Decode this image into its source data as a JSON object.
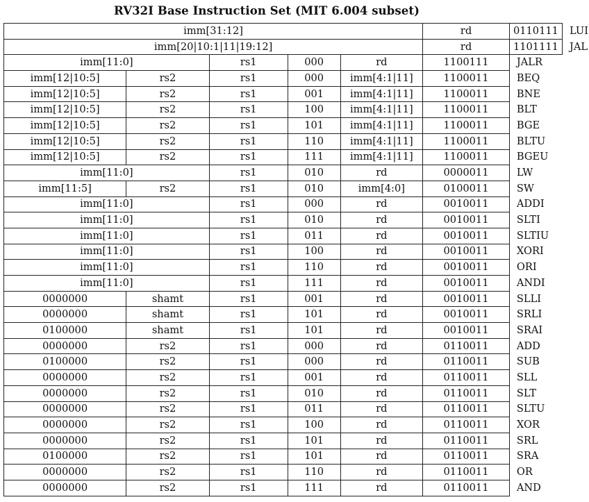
{
  "title": "RV32I Base Instruction Set (MIT 6.004 subset)",
  "instructions": [
    {
      "cells": [
        "imm[31:12]",
        "rd",
        "0110111"
      ],
      "spans": [
        5,
        1,
        1
      ],
      "name": "LUI"
    },
    {
      "cells": [
        "imm[20|10:1|11|19:12]",
        "rd",
        "1101111"
      ],
      "spans": [
        5,
        1,
        1
      ],
      "name": "JAL"
    },
    {
      "cells": [
        "imm[11:0]",
        "rs1",
        "000",
        "rd",
        "1100111"
      ],
      "spans": [
        2,
        1,
        1,
        1,
        1
      ],
      "name": "JALR"
    },
    {
      "cells": [
        "imm[12|10:5]",
        "rs2",
        "rs1",
        "000",
        "imm[4:1|11]",
        "1100011"
      ],
      "spans": [
        1,
        1,
        1,
        1,
        1,
        1
      ],
      "name": "BEQ"
    },
    {
      "cells": [
        "imm[12|10:5]",
        "rs2",
        "rs1",
        "001",
        "imm[4:1|11]",
        "1100011"
      ],
      "spans": [
        1,
        1,
        1,
        1,
        1,
        1
      ],
      "name": "BNE"
    },
    {
      "cells": [
        "imm[12|10:5]",
        "rs2",
        "rs1",
        "100",
        "imm[4:1|11]",
        "1100011"
      ],
      "spans": [
        1,
        1,
        1,
        1,
        1,
        1
      ],
      "name": "BLT"
    },
    {
      "cells": [
        "imm[12|10:5]",
        "rs2",
        "rs1",
        "101",
        "imm[4:1|11]",
        "1100011"
      ],
      "spans": [
        1,
        1,
        1,
        1,
        1,
        1
      ],
      "name": "BGE"
    },
    {
      "cells": [
        "imm[12|10:5]",
        "rs2",
        "rs1",
        "110",
        "imm[4:1|11]",
        "1100011"
      ],
      "spans": [
        1,
        1,
        1,
        1,
        1,
        1
      ],
      "name": "BLTU"
    },
    {
      "cells": [
        "imm[12|10:5]",
        "rs2",
        "rs1",
        "111",
        "imm[4:1|11]",
        "1100011"
      ],
      "spans": [
        1,
        1,
        1,
        1,
        1,
        1
      ],
      "name": "BGEU"
    },
    {
      "cells": [
        "imm[11:0]",
        "rs1",
        "010",
        "rd",
        "0000011"
      ],
      "spans": [
        2,
        1,
        1,
        1,
        1
      ],
      "name": "LW"
    },
    {
      "cells": [
        "imm[11:5]",
        "rs2",
        "rs1",
        "010",
        "imm[4:0]",
        "0100011"
      ],
      "spans": [
        1,
        1,
        1,
        1,
        1,
        1
      ],
      "name": "SW"
    },
    {
      "cells": [
        "imm[11:0]",
        "rs1",
        "000",
        "rd",
        "0010011"
      ],
      "spans": [
        2,
        1,
        1,
        1,
        1
      ],
      "name": "ADDI"
    },
    {
      "cells": [
        "imm[11:0]",
        "rs1",
        "010",
        "rd",
        "0010011"
      ],
      "spans": [
        2,
        1,
        1,
        1,
        1
      ],
      "name": "SLTI"
    },
    {
      "cells": [
        "imm[11:0]",
        "rs1",
        "011",
        "rd",
        "0010011"
      ],
      "spans": [
        2,
        1,
        1,
        1,
        1
      ],
      "name": "SLTIU"
    },
    {
      "cells": [
        "imm[11:0]",
        "rs1",
        "100",
        "rd",
        "0010011"
      ],
      "spans": [
        2,
        1,
        1,
        1,
        1
      ],
      "name": "XORI"
    },
    {
      "cells": [
        "imm[11:0]",
        "rs1",
        "110",
        "rd",
        "0010011"
      ],
      "spans": [
        2,
        1,
        1,
        1,
        1
      ],
      "name": "ORI"
    },
    {
      "cells": [
        "imm[11:0]",
        "rs1",
        "111",
        "rd",
        "0010011"
      ],
      "spans": [
        2,
        1,
        1,
        1,
        1
      ],
      "name": "ANDI"
    },
    {
      "cells": [
        "0000000",
        "shamt",
        "rs1",
        "001",
        "rd",
        "0010011"
      ],
      "spans": [
        1,
        1,
        1,
        1,
        1,
        1
      ],
      "name": "SLLI"
    },
    {
      "cells": [
        "0000000",
        "shamt",
        "rs1",
        "101",
        "rd",
        "0010011"
      ],
      "spans": [
        1,
        1,
        1,
        1,
        1,
        1
      ],
      "name": "SRLI"
    },
    {
      "cells": [
        "0100000",
        "shamt",
        "rs1",
        "101",
        "rd",
        "0010011"
      ],
      "spans": [
        1,
        1,
        1,
        1,
        1,
        1
      ],
      "name": "SRAI"
    },
    {
      "cells": [
        "0000000",
        "rs2",
        "rs1",
        "000",
        "rd",
        "0110011"
      ],
      "spans": [
        1,
        1,
        1,
        1,
        1,
        1
      ],
      "name": "ADD"
    },
    {
      "cells": [
        "0100000",
        "rs2",
        "rs1",
        "000",
        "rd",
        "0110011"
      ],
      "spans": [
        1,
        1,
        1,
        1,
        1,
        1
      ],
      "name": "SUB"
    },
    {
      "cells": [
        "0000000",
        "rs2",
        "rs1",
        "001",
        "rd",
        "0110011"
      ],
      "spans": [
        1,
        1,
        1,
        1,
        1,
        1
      ],
      "name": "SLL"
    },
    {
      "cells": [
        "0000000",
        "rs2",
        "rs1",
        "010",
        "rd",
        "0110011"
      ],
      "spans": [
        1,
        1,
        1,
        1,
        1,
        1
      ],
      "name": "SLT"
    },
    {
      "cells": [
        "0000000",
        "rs2",
        "rs1",
        "011",
        "rd",
        "0110011"
      ],
      "spans": [
        1,
        1,
        1,
        1,
        1,
        1
      ],
      "name": "SLTU"
    },
    {
      "cells": [
        "0000000",
        "rs2",
        "rs1",
        "100",
        "rd",
        "0110011"
      ],
      "spans": [
        1,
        1,
        1,
        1,
        1,
        1
      ],
      "name": "XOR"
    },
    {
      "cells": [
        "0000000",
        "rs2",
        "rs1",
        "101",
        "rd",
        "0110011"
      ],
      "spans": [
        1,
        1,
        1,
        1,
        1,
        1
      ],
      "name": "SRL"
    },
    {
      "cells": [
        "0100000",
        "rs2",
        "rs1",
        "101",
        "rd",
        "0110011"
      ],
      "spans": [
        1,
        1,
        1,
        1,
        1,
        1
      ],
      "name": "SRA"
    },
    {
      "cells": [
        "0000000",
        "rs2",
        "rs1",
        "110",
        "rd",
        "0110011"
      ],
      "spans": [
        1,
        1,
        1,
        1,
        1,
        1
      ],
      "name": "OR"
    },
    {
      "cells": [
        "0000000",
        "rs2",
        "rs1",
        "111",
        "rd",
        "0110011"
      ],
      "spans": [
        1,
        1,
        1,
        1,
        1,
        1
      ],
      "name": "AND"
    }
  ]
}
